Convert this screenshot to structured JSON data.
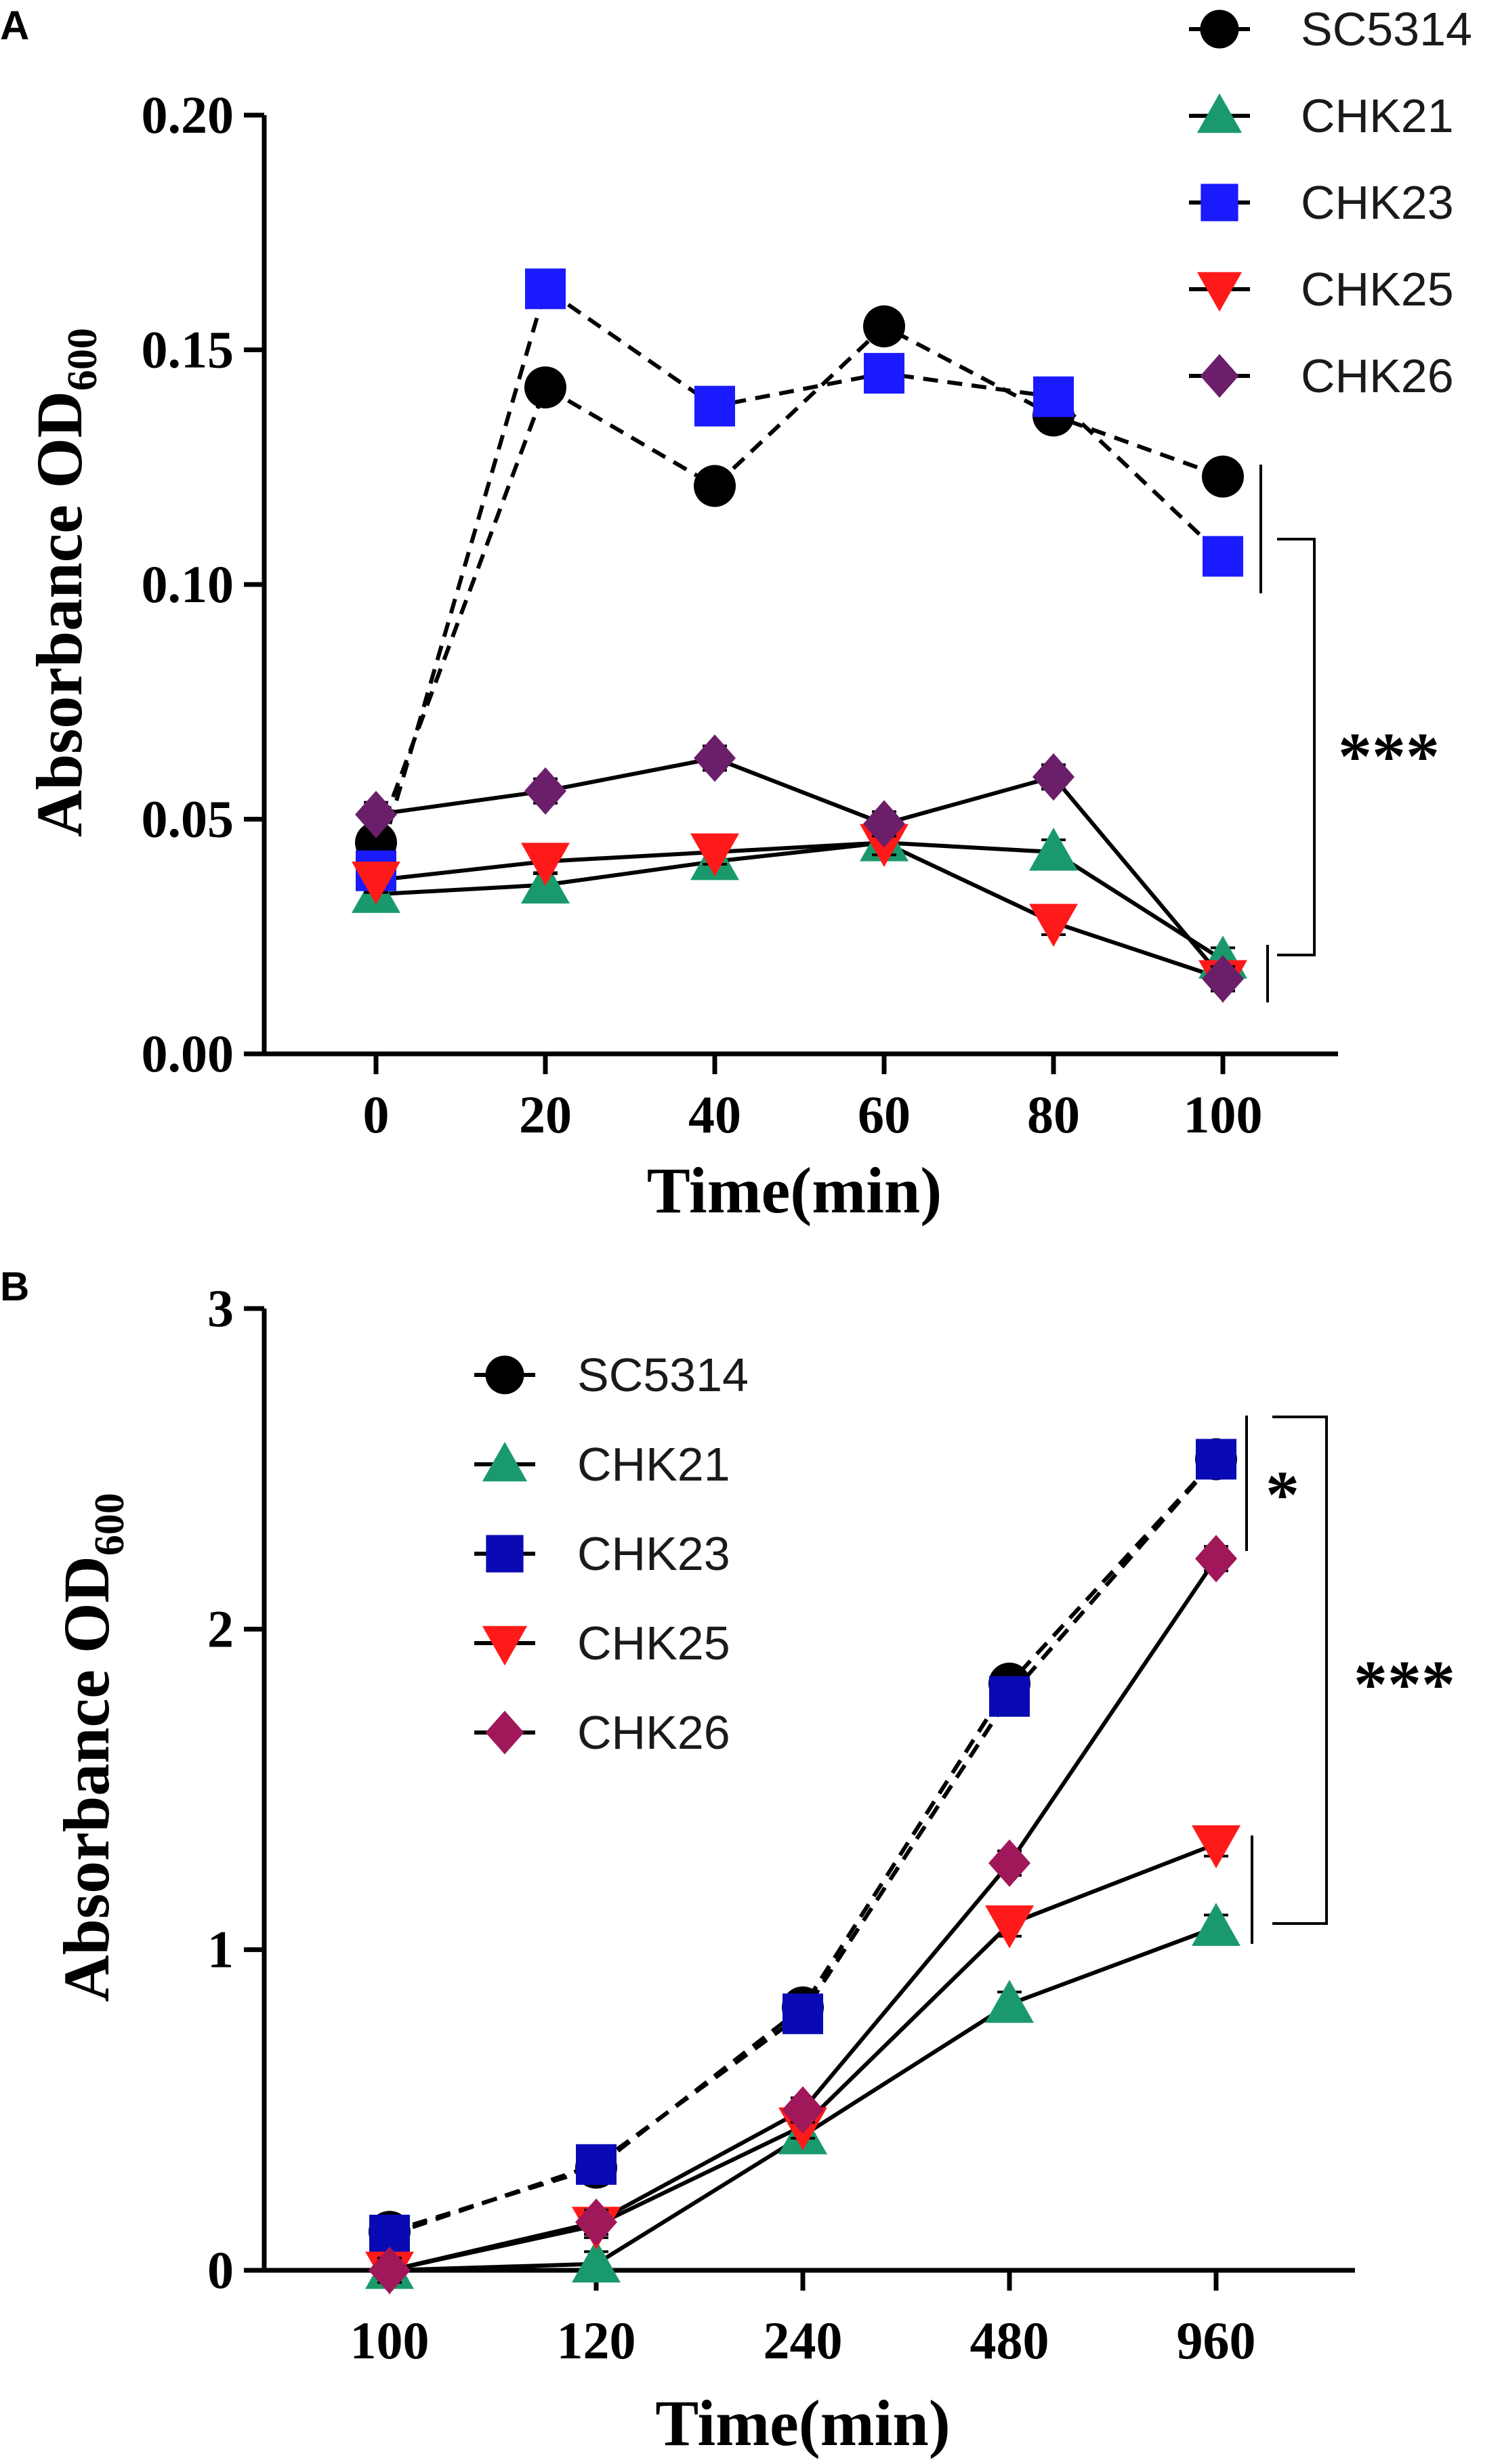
{
  "chart_data": [
    {
      "type": "line",
      "panel_label": "A",
      "xlabel": "Time(min)",
      "ylabel_main": "Absorbance  OD",
      "ylabel_sub": "600",
      "categories": [
        "0",
        "20",
        "40",
        "60",
        "80",
        "100"
      ],
      "x_ticks": [
        "0",
        "20",
        "40",
        "60",
        "80",
        "100"
      ],
      "y_ticks": [
        "0.00",
        "0.05",
        "0.10",
        "0.15",
        "0.20"
      ],
      "ylim": [
        0,
        0.2
      ],
      "legend_position": "top-right",
      "series": [
        {
          "name": "SC5314",
          "marker": "circle",
          "color": "#000000",
          "dashed": true,
          "values": [
            0.045,
            0.142,
            0.121,
            0.155,
            0.136,
            0.123
          ]
        },
        {
          "name": "CHK21",
          "marker": "triangle-up",
          "color": "#1a9a6c",
          "dashed": false,
          "values": [
            0.034,
            0.036,
            0.041,
            0.045,
            0.043,
            0.02
          ]
        },
        {
          "name": "CHK23",
          "marker": "square",
          "color": "#1a1aff",
          "dashed": true,
          "values": [
            0.039,
            0.163,
            0.138,
            0.145,
            0.14,
            0.106
          ]
        },
        {
          "name": "CHK25",
          "marker": "triangle-down",
          "color": "#ff1a1a",
          "dashed": false,
          "values": [
            0.037,
            0.041,
            0.043,
            0.045,
            0.028,
            0.016
          ]
        },
        {
          "name": "CHK26",
          "marker": "diamond",
          "color": "#6b1f6b",
          "dashed": false,
          "values": [
            0.051,
            0.056,
            0.063,
            0.049,
            0.059,
            0.016
          ]
        }
      ],
      "annotations": [
        "***"
      ]
    },
    {
      "type": "line",
      "panel_label": "B",
      "xlabel": "Time(min)",
      "ylabel_main": "Absorbance  OD",
      "ylabel_sub": "600",
      "categories": [
        "100",
        "120",
        "240",
        "480",
        "960"
      ],
      "x_ticks": [
        "100",
        "120",
        "240",
        "480",
        "960"
      ],
      "y_ticks": [
        "0",
        "1",
        "2",
        "3"
      ],
      "ylim": [
        0,
        3
      ],
      "legend_position": "top-left",
      "series": [
        {
          "name": "SC5314",
          "marker": "circle",
          "color": "#000000",
          "dashed": true,
          "values": [
            0.12,
            0.32,
            0.82,
            1.83,
            2.53
          ]
        },
        {
          "name": "CHK21",
          "marker": "triangle-up",
          "color": "#1a9a6c",
          "dashed": false,
          "values": [
            0.0,
            0.02,
            0.42,
            0.83,
            1.07
          ]
        },
        {
          "name": "CHK23",
          "marker": "square",
          "color": "#0a0ab4",
          "dashed": true,
          "values": [
            0.11,
            0.33,
            0.8,
            1.79,
            2.53
          ]
        },
        {
          "name": "CHK25",
          "marker": "triangle-down",
          "color": "#ff1a1a",
          "dashed": false,
          "values": [
            0.0,
            0.14,
            0.45,
            1.08,
            1.33
          ]
        },
        {
          "name": "CHK26",
          "marker": "diamond",
          "color": "#a0185a",
          "dashed": false,
          "values": [
            0.0,
            0.15,
            0.5,
            1.27,
            2.22
          ]
        }
      ],
      "annotations": [
        "*",
        "***"
      ]
    }
  ]
}
